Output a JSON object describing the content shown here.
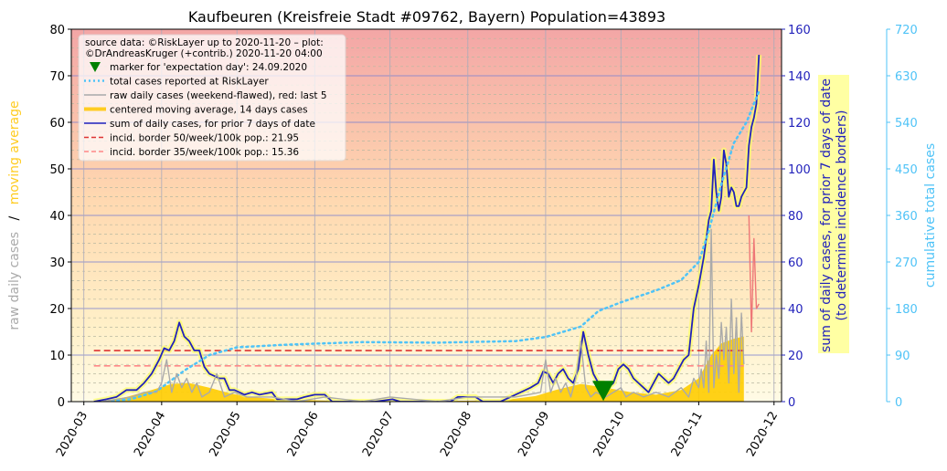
{
  "chart_data": {
    "type": "line",
    "title": "Kaufbeuren (Kreisfreie Stadt #09762, Bayern) Population=43893",
    "left_axis": {
      "label_parts": [
        "raw daily cases",
        "/",
        "moving average"
      ],
      "ylim": [
        0,
        80
      ],
      "ticks": [
        0,
        10,
        20,
        30,
        40,
        50,
        60,
        70,
        80
      ],
      "color": "#000000"
    },
    "right_axis": {
      "label_lines": [
        "sum of daily cases, for prior 7 days of date",
        "(to determine incidence borders)"
      ],
      "ylim": [
        0,
        160
      ],
      "ticks": [
        0,
        20,
        40,
        60,
        80,
        100,
        120,
        140,
        160
      ],
      "color": "#2222bb"
    },
    "far_right_axis": {
      "label": "cumulative total cases",
      "ylim": [
        0,
        720
      ],
      "ticks": [
        0,
        90,
        180,
        270,
        360,
        450,
        540,
        630,
        720
      ],
      "color": "#4fc3f7"
    },
    "x_axis": {
      "range": [
        "2020-02-25",
        "2020-12-04"
      ],
      "ticks": [
        "2020-03",
        "2020-04",
        "2020-05",
        "2020-06",
        "2020-07",
        "2020-08",
        "2020-09",
        "2020-10",
        "2020-11",
        "2020-12"
      ]
    },
    "legend": {
      "placement": "top-left",
      "header_lines": [
        "source data: ©RiskLayer up to 2020-11-20 – plot:",
        "©DrAndreasKruger (+contrib.) 2020-11-20 04:00"
      ],
      "entries": [
        {
          "label": "marker for 'expectation day': 24.09.2020",
          "style": "marker",
          "color": "#008000"
        },
        {
          "label": "total cases reported at RiskLayer",
          "style": "dotted",
          "color": "#4fc3f7"
        },
        {
          "label": "raw daily cases (weekend-flawed), red: last 5",
          "style": "line",
          "color": "#aaaaaa"
        },
        {
          "label": "centered moving average, 14 days cases",
          "style": "thick",
          "color": "#ffcc22"
        },
        {
          "label": "sum of daily cases, for prior 7 days of date",
          "style": "line",
          "color": "#2222bb"
        },
        {
          "label": "incid. border 50/week/100k pop.: 21.95",
          "style": "dashed",
          "color": "#dd3333"
        },
        {
          "label": "incid. border 35/week/100k pop.: 15.36",
          "style": "dashed",
          "color": "#ff8888"
        }
      ]
    },
    "expectation_day": {
      "date": "2020-09-24",
      "value_left": 2.5
    },
    "incidence_borders": [
      {
        "value_right": 21.95,
        "color": "#dd3333",
        "from": "2020-03-05",
        "to": "2020-11-20"
      },
      {
        "value_right": 15.36,
        "color": "#ff8888",
        "from": "2020-03-05",
        "to": "2020-11-20"
      }
    ],
    "series": [
      {
        "name": "sum of daily cases, for prior 7 days of date",
        "axis": "right",
        "color": "#2222bb",
        "points": [
          [
            "2020-03-05",
            0
          ],
          [
            "2020-03-10",
            1
          ],
          [
            "2020-03-14",
            2
          ],
          [
            "2020-03-18",
            5
          ],
          [
            "2020-03-22",
            5
          ],
          [
            "2020-03-25",
            8
          ],
          [
            "2020-03-28",
            12
          ],
          [
            "2020-03-31",
            18
          ],
          [
            "2020-04-02",
            23
          ],
          [
            "2020-04-04",
            22
          ],
          [
            "2020-04-06",
            26
          ],
          [
            "2020-04-08",
            34
          ],
          [
            "2020-04-10",
            28
          ],
          [
            "2020-04-12",
            26
          ],
          [
            "2020-04-14",
            22
          ],
          [
            "2020-04-16",
            22
          ],
          [
            "2020-04-18",
            15
          ],
          [
            "2020-04-20",
            12
          ],
          [
            "2020-04-22",
            11
          ],
          [
            "2020-04-24",
            10
          ],
          [
            "2020-04-26",
            10
          ],
          [
            "2020-04-28",
            5
          ],
          [
            "2020-04-30",
            5
          ],
          [
            "2020-05-02",
            4
          ],
          [
            "2020-05-04",
            3
          ],
          [
            "2020-05-07",
            4
          ],
          [
            "2020-05-10",
            3
          ],
          [
            "2020-05-15",
            4
          ],
          [
            "2020-05-17",
            1
          ],
          [
            "2020-05-25",
            1
          ],
          [
            "2020-05-28",
            2
          ],
          [
            "2020-06-01",
            3
          ],
          [
            "2020-06-05",
            3
          ],
          [
            "2020-06-08",
            0
          ],
          [
            "2020-06-20",
            0
          ],
          [
            "2020-06-25",
            0
          ],
          [
            "2020-07-02",
            1
          ],
          [
            "2020-07-05",
            0
          ],
          [
            "2020-07-25",
            0
          ],
          [
            "2020-07-28",
            2
          ],
          [
            "2020-08-04",
            2
          ],
          [
            "2020-08-07",
            0
          ],
          [
            "2020-08-14",
            0
          ],
          [
            "2020-08-18",
            2
          ],
          [
            "2020-08-22",
            4
          ],
          [
            "2020-08-26",
            6
          ],
          [
            "2020-08-29",
            8
          ],
          [
            "2020-08-31",
            13
          ],
          [
            "2020-09-02",
            12
          ],
          [
            "2020-09-04",
            8
          ],
          [
            "2020-09-06",
            12
          ],
          [
            "2020-09-08",
            14
          ],
          [
            "2020-09-10",
            10
          ],
          [
            "2020-09-12",
            8
          ],
          [
            "2020-09-14",
            14
          ],
          [
            "2020-09-16",
            30
          ],
          [
            "2020-09-18",
            20
          ],
          [
            "2020-09-20",
            12
          ],
          [
            "2020-09-22",
            8
          ],
          [
            "2020-09-24",
            8
          ],
          [
            "2020-09-26",
            6
          ],
          [
            "2020-09-28",
            8
          ],
          [
            "2020-09-30",
            14
          ],
          [
            "2020-10-02",
            16
          ],
          [
            "2020-10-04",
            14
          ],
          [
            "2020-10-06",
            10
          ],
          [
            "2020-10-08",
            8
          ],
          [
            "2020-10-10",
            6
          ],
          [
            "2020-10-12",
            4
          ],
          [
            "2020-10-14",
            8
          ],
          [
            "2020-10-16",
            12
          ],
          [
            "2020-10-18",
            10
          ],
          [
            "2020-10-20",
            8
          ],
          [
            "2020-10-22",
            10
          ],
          [
            "2020-10-24",
            14
          ],
          [
            "2020-10-26",
            18
          ],
          [
            "2020-10-28",
            20
          ],
          [
            "2020-10-30",
            40
          ],
          [
            "2020-11-01",
            50
          ],
          [
            "2020-11-03",
            62
          ],
          [
            "2020-11-05",
            78
          ],
          [
            "2020-11-06",
            82
          ],
          [
            "2020-11-07",
            104
          ],
          [
            "2020-11-08",
            90
          ],
          [
            "2020-11-09",
            82
          ],
          [
            "2020-11-10",
            88
          ],
          [
            "2020-11-11",
            108
          ],
          [
            "2020-11-12",
            102
          ],
          [
            "2020-11-13",
            88
          ],
          [
            "2020-11-14",
            92
          ],
          [
            "2020-11-15",
            90
          ],
          [
            "2020-11-16",
            84
          ],
          [
            "2020-11-17",
            84
          ],
          [
            "2020-11-18",
            88
          ],
          [
            "2020-11-19",
            90
          ],
          [
            "2020-11-20",
            92
          ],
          [
            "2020-11-21",
            110
          ],
          [
            "2020-11-22",
            118
          ],
          [
            "2020-11-23",
            122
          ],
          [
            "2020-11-24",
            128
          ],
          [
            "2020-11-25",
            149
          ]
        ]
      },
      {
        "name": "total cases reported at RiskLayer",
        "axis": "far_right",
        "color": "#4fc3f7",
        "points": [
          [
            "2020-03-10",
            0
          ],
          [
            "2020-03-20",
            5
          ],
          [
            "2020-03-30",
            20
          ],
          [
            "2020-04-10",
            60
          ],
          [
            "2020-04-20",
            90
          ],
          [
            "2020-05-01",
            105
          ],
          [
            "2020-05-20",
            110
          ],
          [
            "2020-06-01",
            112
          ],
          [
            "2020-06-20",
            115
          ],
          [
            "2020-07-20",
            114
          ],
          [
            "2020-08-20",
            117
          ],
          [
            "2020-09-01",
            125
          ],
          [
            "2020-09-15",
            145
          ],
          [
            "2020-09-22",
            175
          ],
          [
            "2020-10-01",
            192
          ],
          [
            "2020-10-15",
            215
          ],
          [
            "2020-10-25",
            235
          ],
          [
            "2020-11-01",
            270
          ],
          [
            "2020-11-05",
            330
          ],
          [
            "2020-11-10",
            420
          ],
          [
            "2020-11-15",
            500
          ],
          [
            "2020-11-20",
            540
          ],
          [
            "2020-11-25",
            600
          ]
        ]
      },
      {
        "name": "raw daily cases (weekend-flawed), red: last 5",
        "axis": "left",
        "color": "#aaaaaa",
        "points": [
          [
            "2020-03-08",
            0
          ],
          [
            "2020-03-20",
            1
          ],
          [
            "2020-03-25",
            2
          ],
          [
            "2020-03-30",
            2
          ],
          [
            "2020-04-01",
            4
          ],
          [
            "2020-04-03",
            9
          ],
          [
            "2020-04-05",
            2
          ],
          [
            "2020-04-07",
            6
          ],
          [
            "2020-04-09",
            3
          ],
          [
            "2020-04-11",
            5
          ],
          [
            "2020-04-13",
            2
          ],
          [
            "2020-04-15",
            4
          ],
          [
            "2020-04-17",
            1
          ],
          [
            "2020-04-20",
            2
          ],
          [
            "2020-04-23",
            6
          ],
          [
            "2020-04-26",
            1
          ],
          [
            "2020-04-30",
            2
          ],
          [
            "2020-05-05",
            1
          ],
          [
            "2020-05-15",
            1
          ],
          [
            "2020-05-25",
            0
          ],
          [
            "2020-06-05",
            1
          ],
          [
            "2020-06-20",
            0
          ],
          [
            "2020-07-01",
            1
          ],
          [
            "2020-07-20",
            0
          ],
          [
            "2020-08-01",
            1
          ],
          [
            "2020-08-20",
            1
          ],
          [
            "2020-08-30",
            2
          ],
          [
            "2020-09-01",
            9
          ],
          [
            "2020-09-03",
            2
          ],
          [
            "2020-09-05",
            5
          ],
          [
            "2020-09-07",
            2
          ],
          [
            "2020-09-09",
            4
          ],
          [
            "2020-09-11",
            1
          ],
          [
            "2020-09-13",
            5
          ],
          [
            "2020-09-15",
            13
          ],
          [
            "2020-09-17",
            3
          ],
          [
            "2020-09-19",
            1
          ],
          [
            "2020-09-21",
            2
          ],
          [
            "2020-09-25",
            1
          ],
          [
            "2020-09-28",
            2
          ],
          [
            "2020-10-01",
            3
          ],
          [
            "2020-10-03",
            1
          ],
          [
            "2020-10-06",
            2
          ],
          [
            "2020-10-10",
            1
          ],
          [
            "2020-10-15",
            2
          ],
          [
            "2020-10-20",
            1
          ],
          [
            "2020-10-25",
            3
          ],
          [
            "2020-10-28",
            1
          ],
          [
            "2020-10-30",
            5
          ],
          [
            "2020-11-01",
            3
          ],
          [
            "2020-11-02",
            7
          ],
          [
            "2020-11-03",
            3
          ],
          [
            "2020-11-04",
            13
          ],
          [
            "2020-11-05",
            2
          ],
          [
            "2020-11-06",
            37
          ],
          [
            "2020-11-07",
            3
          ],
          [
            "2020-11-08",
            10
          ],
          [
            "2020-11-09",
            5
          ],
          [
            "2020-11-10",
            17
          ],
          [
            "2020-11-11",
            9
          ],
          [
            "2020-11-12",
            16
          ],
          [
            "2020-11-13",
            4
          ],
          [
            "2020-11-14",
            22
          ],
          [
            "2020-11-15",
            6
          ],
          [
            "2020-11-16",
            18
          ],
          [
            "2020-11-17",
            2
          ],
          [
            "2020-11-18",
            19
          ],
          [
            "2020-11-19",
            8
          ]
        ]
      },
      {
        "name": "raw daily cases, last 5 (red)",
        "axis": "left",
        "color": "#ee7777",
        "points": [
          [
            "2020-11-21",
            40
          ],
          [
            "2020-11-22",
            15
          ],
          [
            "2020-11-23",
            35
          ],
          [
            "2020-11-24",
            20
          ],
          [
            "2020-11-25",
            21
          ]
        ]
      },
      {
        "name": "centered moving average, 14 days cases",
        "axis": "left",
        "color": "#ffcc22",
        "points": [
          [
            "2020-03-08",
            0
          ],
          [
            "2020-03-18",
            1
          ],
          [
            "2020-03-28",
            2.5
          ],
          [
            "2020-04-05",
            3.8
          ],
          [
            "2020-04-12",
            4
          ],
          [
            "2020-04-20",
            3
          ],
          [
            "2020-04-28",
            1.8
          ],
          [
            "2020-05-06",
            1
          ],
          [
            "2020-05-18",
            0.5
          ],
          [
            "2020-06-01",
            0.3
          ],
          [
            "2020-06-15",
            0.1
          ],
          [
            "2020-07-05",
            0.1
          ],
          [
            "2020-07-30",
            0.2
          ],
          [
            "2020-08-15",
            0.3
          ],
          [
            "2020-08-28",
            1.2
          ],
          [
            "2020-09-05",
            2.5
          ],
          [
            "2020-09-15",
            3.8
          ],
          [
            "2020-09-25",
            3
          ],
          [
            "2020-10-05",
            2
          ],
          [
            "2020-10-15",
            1.5
          ],
          [
            "2020-10-25",
            2.5
          ],
          [
            "2020-11-01",
            5
          ],
          [
            "2020-11-06",
            10
          ],
          [
            "2020-11-10",
            12.5
          ],
          [
            "2020-11-15",
            13.5
          ],
          [
            "2020-11-19",
            14
          ]
        ]
      }
    ]
  }
}
